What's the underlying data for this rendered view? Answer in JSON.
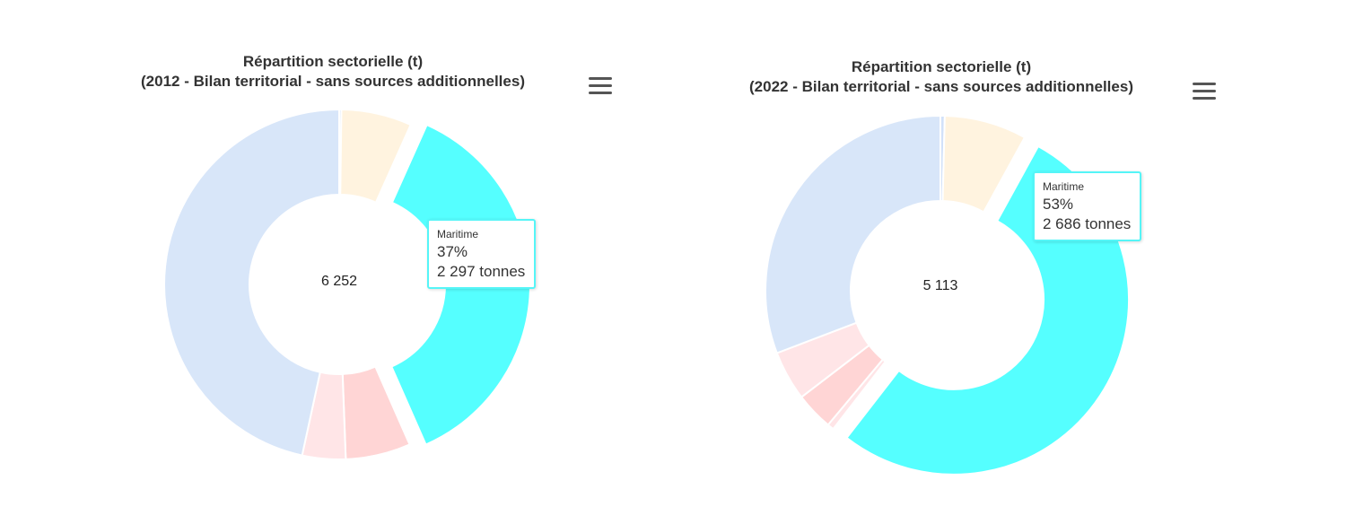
{
  "chart_data": [
    {
      "type": "pie",
      "variant": "donut",
      "title": "Répartition sectorielle (t)",
      "subtitle": "(2012 - Bilan territorial - sans sources additionnelles)",
      "total_label": "6 252",
      "unit": "t",
      "slices": [
        {
          "label": "",
          "percent": 0.2,
          "color": "#d2e1f9"
        },
        {
          "label": "",
          "percent": 6.5,
          "color": "#fff3df"
        },
        {
          "label": "Maritime",
          "percent": 36.7,
          "color": "#55ffff",
          "exploded": true
        },
        {
          "label": "",
          "percent": 6.0,
          "color": "#ffd5d5"
        },
        {
          "label": "",
          "percent": 4.0,
          "color": "#ffe5e7"
        },
        {
          "label": "",
          "percent": 46.6,
          "color": "#d8e6f9"
        }
      ],
      "tooltip": {
        "name": "Maritime",
        "percent": "37%",
        "value": "2 297 tonnes"
      }
    },
    {
      "type": "pie",
      "variant": "donut",
      "title": "Répartition sectorielle (t)",
      "subtitle": "(2022 - Bilan territorial - sans sources additionnelles)",
      "total_label": "5 113",
      "unit": "t",
      "slices": [
        {
          "label": "",
          "percent": 0.4,
          "color": "#d2e1f9"
        },
        {
          "label": "",
          "percent": 7.6,
          "color": "#fff3df"
        },
        {
          "label": "Maritime",
          "percent": 52.5,
          "color": "#55ffff",
          "exploded": true
        },
        {
          "label": "",
          "percent": 0.6,
          "color": "#ffe5e7"
        },
        {
          "label": "",
          "percent": 3.5,
          "color": "#ffd5d5"
        },
        {
          "label": "",
          "percent": 4.6,
          "color": "#ffe5e7"
        },
        {
          "label": "",
          "percent": 30.8,
          "color": "#d8e6f9"
        }
      ],
      "tooltip": {
        "name": "Maritime",
        "percent": "53%",
        "value": "2 686 tonnes"
      }
    }
  ]
}
